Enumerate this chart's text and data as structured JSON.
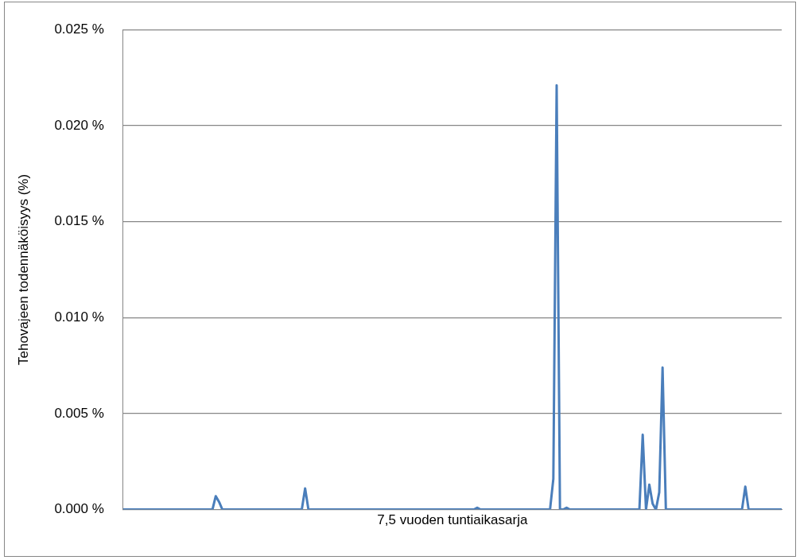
{
  "chart_data": {
    "type": "line",
    "xlabel": "7,5 vuoden tuntiaikasarja",
    "ylabel": "Tehovajeen todennäköisyys (%)",
    "color": "#4a7ebb",
    "marker": "none",
    "grid": "y",
    "legend": false,
    "tick_labels": "y",
    "ylim": [
      0,
      0.025
    ],
    "yticks": [
      {
        "value": 0,
        "label": "0.000 %"
      },
      {
        "value": 0.005,
        "label": "0.005 %"
      },
      {
        "value": 0.01,
        "label": "0.010 %"
      },
      {
        "value": 0.015,
        "label": "0.015 %"
      },
      {
        "value": 0.02,
        "label": "0.020 %"
      },
      {
        "value": 0.025,
        "label": "0.025 %"
      }
    ],
    "categories": [
      null,
      null,
      null,
      null,
      null,
      null,
      null,
      null,
      null,
      null,
      null,
      null,
      null,
      null,
      null,
      null,
      null,
      null,
      null,
      null,
      null,
      null,
      null,
      null,
      null,
      null,
      null,
      null,
      null,
      null,
      null,
      null,
      null,
      null,
      null,
      null,
      null,
      null,
      null,
      null,
      null,
      null,
      null,
      null,
      null,
      null,
      null,
      null,
      null,
      null,
      null,
      null,
      null,
      null,
      null,
      null,
      null,
      null,
      null,
      null,
      null,
      null,
      null,
      null,
      null,
      null,
      null,
      null,
      null,
      null,
      null,
      null,
      null,
      null,
      null,
      null,
      null,
      null,
      null,
      null,
      null,
      null,
      null,
      null,
      null,
      null,
      null,
      null,
      null,
      null,
      null,
      null,
      null,
      null,
      null,
      null,
      null,
      null,
      null,
      null,
      null,
      null,
      null,
      null,
      null,
      null,
      null,
      null,
      null,
      null,
      null,
      null,
      null,
      null,
      null,
      null,
      null,
      null,
      null,
      null,
      null,
      null,
      null,
      null,
      null,
      null,
      null,
      null,
      null,
      null,
      null,
      null,
      null,
      null,
      null,
      null,
      null,
      null,
      null,
      null,
      null,
      null,
      null,
      null,
      null,
      null,
      null,
      null,
      null,
      null,
      null,
      null,
      null,
      null,
      null,
      null,
      null,
      null,
      null,
      null,
      null,
      null,
      null,
      null,
      null,
      null,
      null,
      null,
      null,
      null,
      null,
      null,
      null,
      null,
      null,
      null,
      null,
      null,
      null,
      null,
      null,
      null,
      null,
      null,
      null,
      null,
      null,
      null,
      null,
      null,
      null,
      null,
      null,
      null,
      null,
      null,
      null,
      null,
      null,
      null
    ],
    "values": [
      0,
      0,
      0,
      0,
      0,
      0,
      0,
      0,
      0,
      0,
      0,
      0,
      0,
      0,
      0,
      0,
      0,
      0,
      0,
      0,
      0,
      0,
      0,
      0,
      0,
      0,
      0,
      0,
      0.0007,
      0.0004,
      0,
      0,
      0,
      0,
      0,
      0,
      0,
      0,
      0,
      0,
      0,
      0,
      0,
      0,
      0,
      0,
      0,
      0,
      0,
      0,
      0,
      0,
      0,
      0,
      0,
      0.0011,
      0,
      0,
      0,
      0,
      0,
      0,
      0,
      0,
      0,
      0,
      0,
      0,
      0,
      0,
      0,
      0,
      0,
      0,
      0,
      0,
      0,
      0,
      0,
      0,
      0,
      0,
      0,
      0,
      0,
      0,
      0,
      0,
      0,
      0,
      0,
      0,
      0,
      0,
      0,
      0,
      0,
      0,
      0,
      0,
      0,
      0,
      0,
      0,
      0,
      0,
      0,
      0.0001,
      0,
      0,
      0,
      0,
      0,
      0,
      0,
      0,
      0,
      0,
      0,
      0,
      0,
      0,
      0,
      0,
      0,
      0,
      0,
      0,
      0,
      0,
      0.0016,
      0.0221,
      0,
      0,
      0.0001,
      0,
      0,
      0,
      0,
      0,
      0,
      0,
      0,
      0,
      0,
      0,
      0,
      0,
      0,
      0,
      0,
      0,
      0,
      0,
      0,
      0,
      0,
      0.0039,
      0,
      0.0013,
      0.0003,
      0,
      0.0009,
      0.0074,
      0,
      0,
      0,
      0,
      0,
      0,
      0,
      0,
      0,
      0,
      0,
      0,
      0,
      0,
      0,
      0,
      0,
      0,
      0,
      0,
      0,
      0,
      0,
      0,
      0.0012,
      0,
      0,
      0,
      0,
      0,
      0,
      0,
      0,
      0,
      0,
      0
    ]
  }
}
